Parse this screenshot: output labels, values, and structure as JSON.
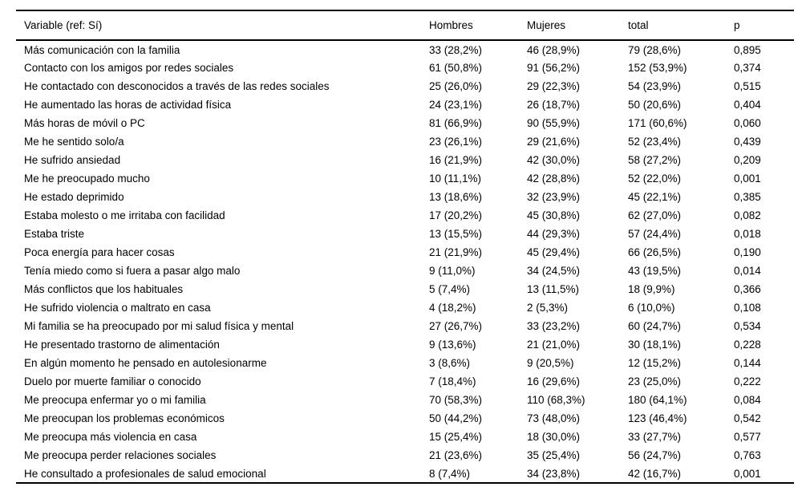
{
  "table": {
    "columns": {
      "variable": "Variable (ref: Sí)",
      "hombres": "Hombres",
      "mujeres": "Mujeres",
      "total": "total",
      "p": "p"
    },
    "rows": [
      {
        "variable": "Más comunicación con la familia",
        "hombres": "33 (28,2%)",
        "mujeres": "46 (28,9%)",
        "total": "79 (28,6%)",
        "p": "0,895"
      },
      {
        "variable": "Contacto con los amigos por redes sociales",
        "hombres": "61 (50,8%)",
        "mujeres": "91 (56,2%)",
        "total": "152 (53,9%)",
        "p": "0,374"
      },
      {
        "variable": "He contactado con desconocidos a través de las redes sociales",
        "hombres": "25 (26,0%)",
        "mujeres": "29 (22,3%)",
        "total": "54 (23,9%)",
        "p": "0,515"
      },
      {
        "variable": "He aumentado las horas de actividad física",
        "hombres": "24 (23,1%)",
        "mujeres": "26 (18,7%)",
        "total": "50 (20,6%)",
        "p": "0,404"
      },
      {
        "variable": "Más horas de móvil o PC",
        "hombres": "81 (66,9%)",
        "mujeres": "90 (55,9%)",
        "total": "171 (60,6%)",
        "p": "0,060"
      },
      {
        "variable": "Me he sentido solo/a",
        "hombres": "23 (26,1%)",
        "mujeres": "29 (21,6%)",
        "total": "52 (23,4%)",
        "p": "0,439"
      },
      {
        "variable": "He sufrido ansiedad",
        "hombres": "16 (21,9%)",
        "mujeres": "42 (30,0%)",
        "total": "58 (27,2%)",
        "p": "0,209"
      },
      {
        "variable": "Me he preocupado mucho",
        "hombres": "10 (11,1%)",
        "mujeres": "42 (28,8%)",
        "total": "52 (22,0%)",
        "p": "0,001"
      },
      {
        "variable": "He estado deprimido",
        "hombres": "13 (18,6%)",
        "mujeres": "32 (23,9%)",
        "total": "45 (22,1%)",
        "p": "0,385"
      },
      {
        "variable": "Estaba molesto o me irritaba con facilidad",
        "hombres": "17 (20,2%)",
        "mujeres": "45 (30,8%)",
        "total": "62 (27,0%)",
        "p": "0,082"
      },
      {
        "variable": "Estaba triste",
        "hombres": "13 (15,5%)",
        "mujeres": "44 (29,3%)",
        "total": "57 (24,4%)",
        "p": "0,018"
      },
      {
        "variable": "Poca energía para hacer cosas",
        "hombres": "21 (21,9%)",
        "mujeres": "45 (29,4%)",
        "total": "66 (26,5%)",
        "p": "0,190"
      },
      {
        "variable": "Tenía miedo como si fuera a pasar algo malo",
        "hombres": "9 (11,0%)",
        "mujeres": "34 (24,5%)",
        "total": "43 (19,5%)",
        "p": "0,014"
      },
      {
        "variable": "Más conflictos que los habituales",
        "hombres": "5 (7,4%)",
        "mujeres": "13 (11,5%)",
        "total": "18 (9,9%)",
        "p": "0,366"
      },
      {
        "variable": "He sufrido violencia o maltrato en casa",
        "hombres": "4 (18,2%)",
        "mujeres": "2 (5,3%)",
        "total": "6 (10,0%)",
        "p": "0,108"
      },
      {
        "variable": "Mi familia se ha preocupado por mi salud física y mental",
        "hombres": "27 (26,7%)",
        "mujeres": "33 (23,2%)",
        "total": "60 (24,7%)",
        "p": "0,534"
      },
      {
        "variable": "He presentado trastorno de alimentación",
        "hombres": "9 (13,6%)",
        "mujeres": "21 (21,0%)",
        "total": "30 (18,1%)",
        "p": "0,228"
      },
      {
        "variable": "En algún momento he pensado en autolesionarme",
        "hombres": "3 (8,6%)",
        "mujeres": "9 (20,5%)",
        "total": "12 (15,2%)",
        "p": "0,144"
      },
      {
        "variable": "Duelo por muerte familiar o conocido",
        "hombres": "7 (18,4%)",
        "mujeres": "16 (29,6%)",
        "total": "23 (25,0%)",
        "p": "0,222"
      },
      {
        "variable": "Me preocupa enfermar yo o mi familia",
        "hombres": "70 (58,3%)",
        "mujeres": "110 (68,3%)",
        "total": "180 (64,1%)",
        "p": "0,084"
      },
      {
        "variable": "Me preocupan los problemas económicos",
        "hombres": "50 (44,2%)",
        "mujeres": "73 (48,0%)",
        "total": "123 (46,4%)",
        "p": "0,542"
      },
      {
        "variable": "Me preocupa más violencia en casa",
        "hombres": "15 (25,4%)",
        "mujeres": "18 (30,0%)",
        "total": "33 (27,7%)",
        "p": "0,577"
      },
      {
        "variable": "Me preocupa perder relaciones sociales",
        "hombres": "21 (23,6%)",
        "mujeres": "35 (25,4%)",
        "total": "56 (24,7%)",
        "p": "0,763"
      },
      {
        "variable": "He consultado a profesionales de salud emocional",
        "hombres": "8 (7,4%)",
        "mujeres": "34 (23,8%)",
        "total": "42 (16,7%)",
        "p": "0,001"
      }
    ]
  }
}
